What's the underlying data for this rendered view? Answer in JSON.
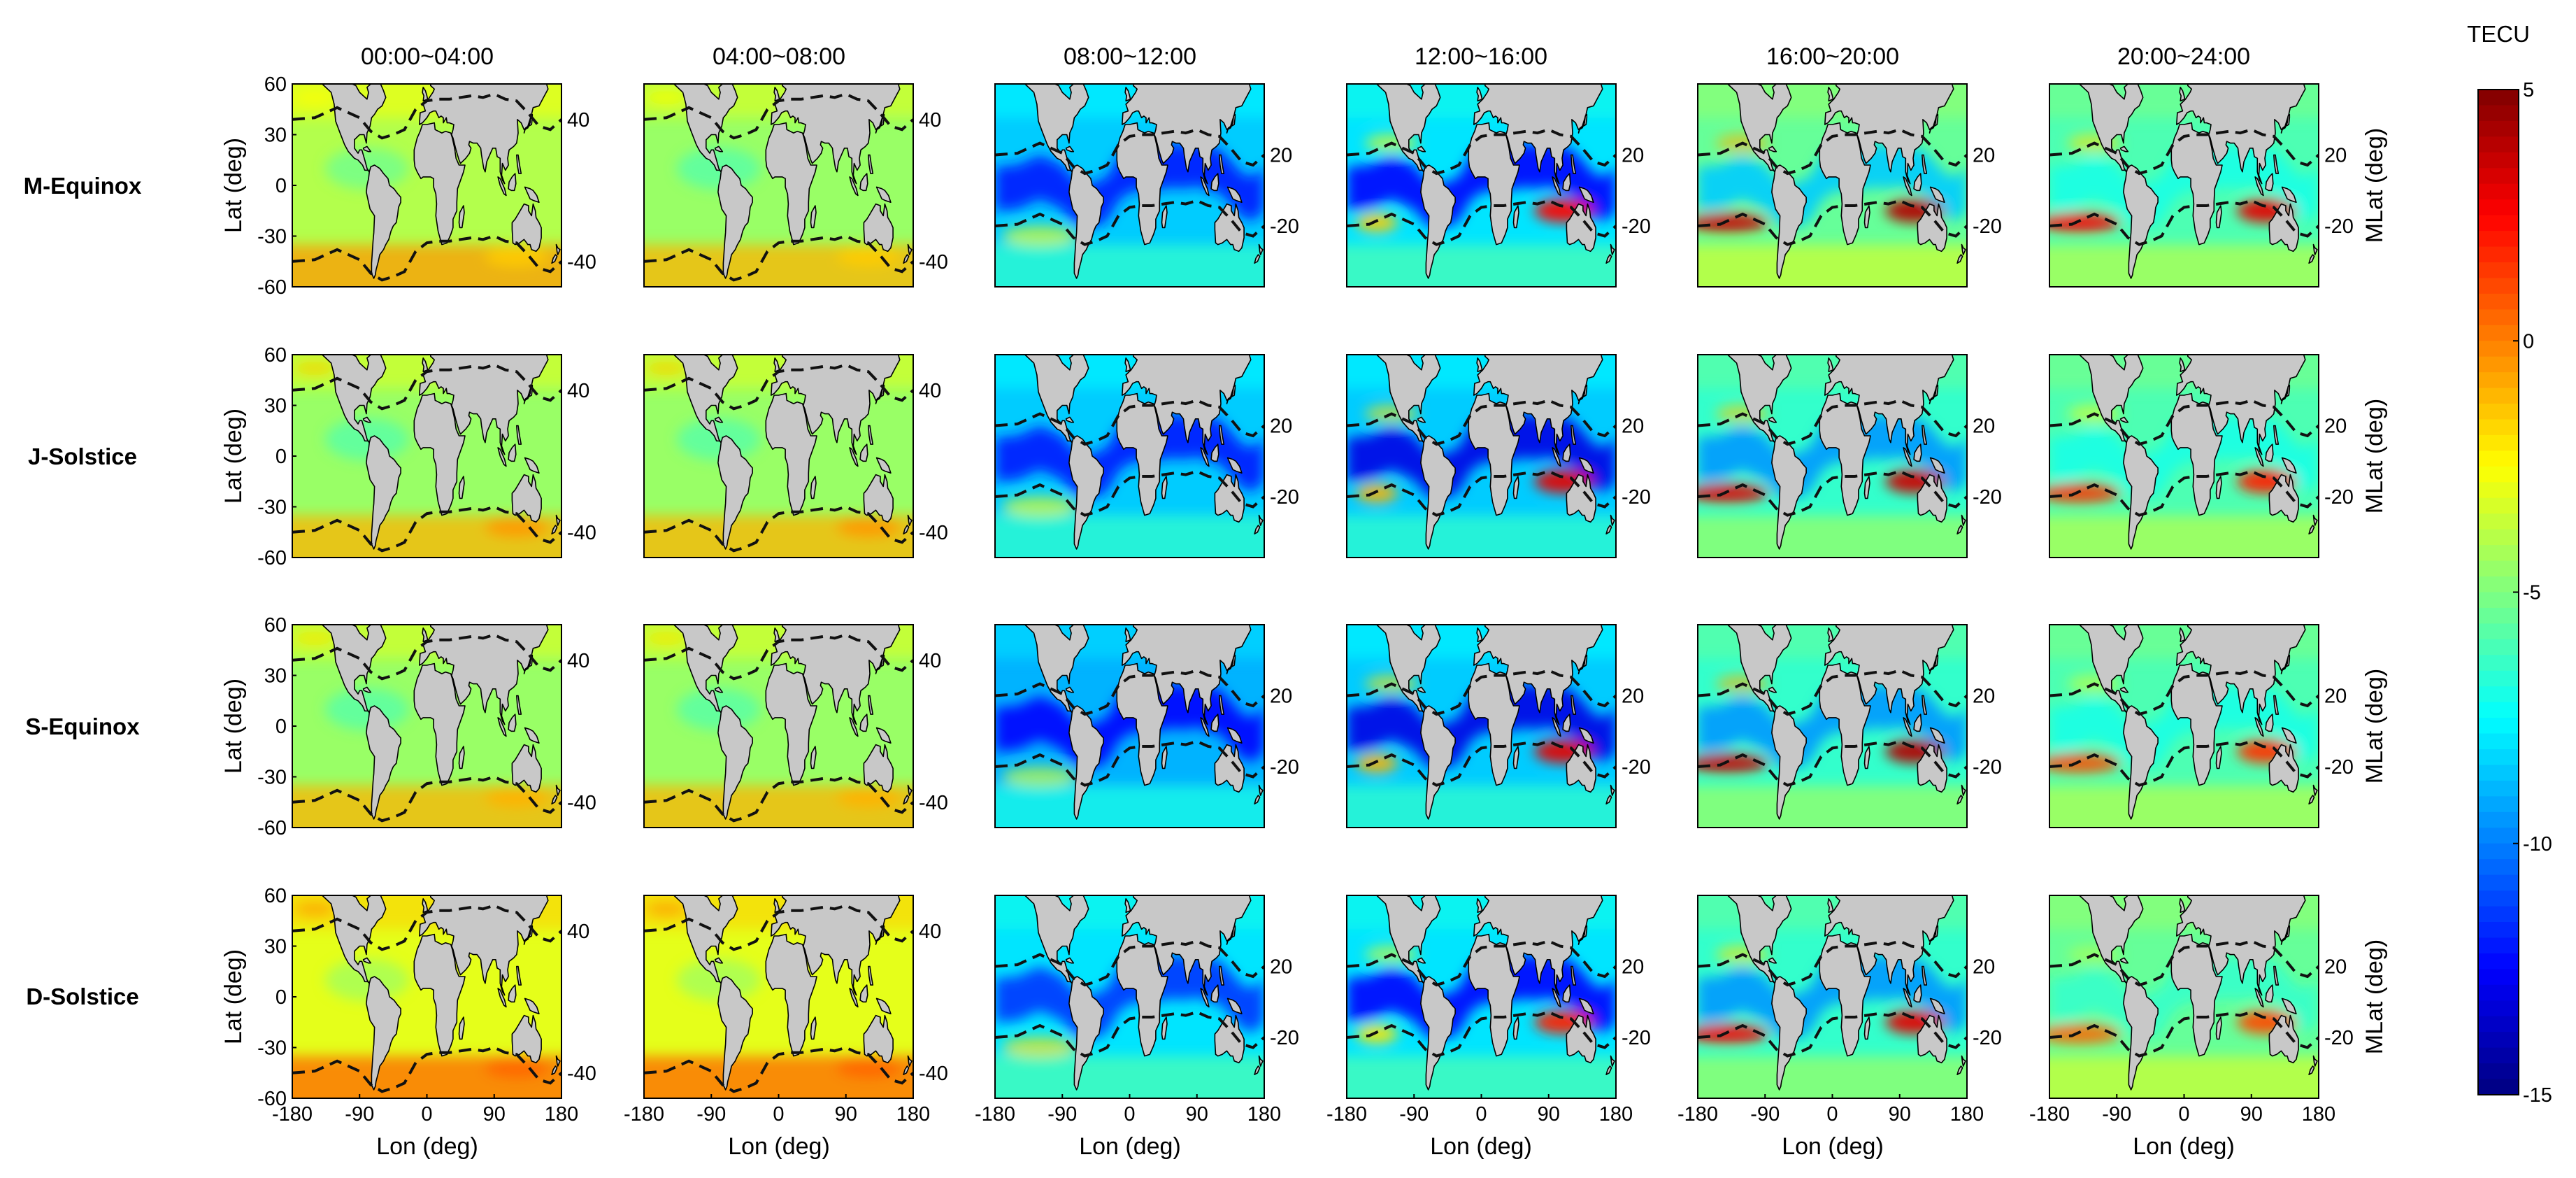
{
  "chart_data": {
    "type": "heatmap",
    "description_of_grid": "4 seasons x 6 local-time bins of global TEC anomaly maps with geomagnetic latitude contours",
    "columns": [
      "00:00~04:00",
      "04:00~08:00",
      "08:00~12:00",
      "12:00~16:00",
      "16:00~20:00",
      "20:00~24:00"
    ],
    "rows": [
      "M-Equinox",
      "J-Solstice",
      "S-Equinox",
      "D-Solstice"
    ],
    "xlabel": "Lon (deg)",
    "ylabel": "Lat (deg)",
    "ylabel_right": "MLat (deg)",
    "xticks": [
      "-180",
      "-90",
      "0",
      "90",
      "180"
    ],
    "xlim": [
      -180,
      180
    ],
    "yticks": [
      "60",
      "30",
      "0",
      "-30",
      "-60"
    ],
    "ylim": [
      -60,
      60
    ],
    "mlat_labels_night": [
      "40",
      "-40"
    ],
    "mlat_labels_day": [
      "20",
      "-20"
    ],
    "colorbar": {
      "label": "TECU",
      "ticks": [
        "5",
        "0",
        "-5",
        "-10",
        "-15"
      ],
      "range": [
        -15,
        5
      ],
      "colormap": "jet"
    },
    "panel_mean_values": [
      [
        -4.0,
        -4.5,
        -8.5,
        -8.0,
        -5.5,
        -6.0
      ],
      [
        -4.5,
        -4.5,
        -8.5,
        -8.5,
        -6.5,
        -6.0
      ],
      [
        -4.5,
        -4.5,
        -9.0,
        -8.5,
        -6.5,
        -6.0
      ],
      [
        -3.0,
        -3.0,
        -8.0,
        -8.0,
        -6.5,
        -5.5
      ]
    ],
    "hotspot_max_values": [
      [
        -1.5,
        -1.5,
        -3.0,
        2.5,
        4.0,
        3.0
      ],
      [
        -0.5,
        -0.5,
        -3.0,
        3.0,
        3.5,
        2.0
      ],
      [
        -1.0,
        -1.0,
        -3.5,
        3.0,
        4.0,
        1.5
      ],
      [
        0.5,
        0.5,
        -2.0,
        2.0,
        3.0,
        1.0
      ]
    ]
  },
  "colors": {
    "land": "#c8c8c8",
    "contour": "#111111"
  }
}
